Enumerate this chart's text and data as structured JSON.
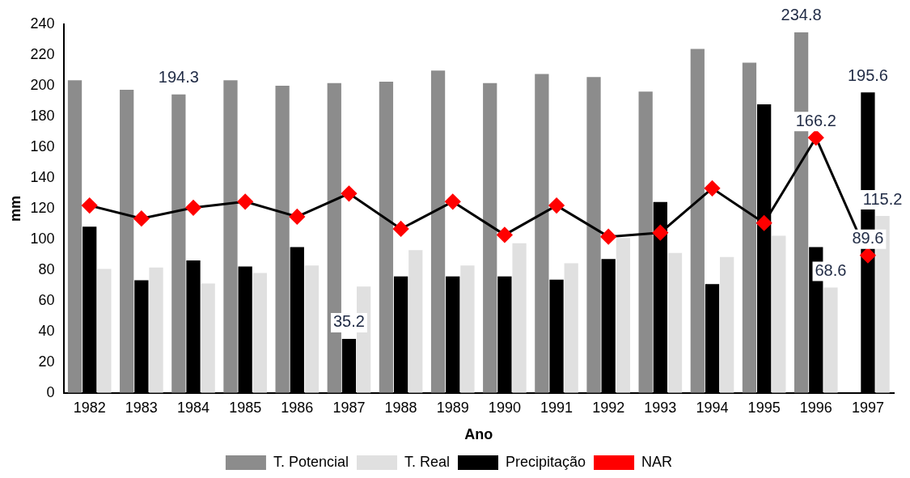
{
  "chart_data": {
    "type": "bar",
    "xlabel": "Ano",
    "ylabel": "mm",
    "categories": [
      "1982",
      "1983",
      "1984",
      "1985",
      "1986",
      "1987",
      "1988",
      "1989",
      "1990",
      "1991",
      "1992",
      "1993",
      "1994",
      "1995",
      "1996",
      "1997"
    ],
    "series": [
      {
        "name": "T. Potencial",
        "color": "#8c8c8c",
        "values": [
          203.6,
          197.3,
          194.3,
          203.6,
          200,
          201.7,
          202.6,
          209.9,
          201.7,
          207.6,
          205.6,
          196.2,
          223.9,
          215,
          234.8,
          null
        ],
        "value_labels": [
          null,
          null,
          "194.3",
          null,
          null,
          null,
          null,
          null,
          null,
          null,
          null,
          null,
          null,
          null,
          "234.8",
          null
        ]
      },
      {
        "name": "T. Real",
        "color": "#e0e0e0",
        "values": [
          80.7,
          81.7,
          71.2,
          78.1,
          83,
          69.3,
          93,
          83,
          97.4,
          84.4,
          100.9,
          91.1,
          88.5,
          102.3,
          68.6,
          115.2
        ],
        "value_labels": [
          null,
          null,
          null,
          null,
          null,
          null,
          null,
          null,
          null,
          null,
          null,
          null,
          null,
          null,
          "68.6",
          "115.2"
        ]
      },
      {
        "name": "Precipitação",
        "color": "#000000",
        "values": [
          108.2,
          73.4,
          86.2,
          82.3,
          95,
          35.2,
          75.8,
          75.8,
          75.8,
          73.8,
          87.2,
          124.3,
          70.8,
          187.9,
          95,
          195.6
        ],
        "value_labels": [
          null,
          null,
          null,
          null,
          null,
          "35.2",
          null,
          null,
          null,
          null,
          null,
          null,
          null,
          null,
          null,
          "195.6"
        ]
      },
      {
        "name": "NAR",
        "type": "line",
        "color": "#ff0000",
        "values": [
          122,
          113.5,
          120.6,
          124.5,
          114.7,
          129.8,
          106.8,
          124.5,
          102.9,
          122,
          101.7,
          104.3,
          133.2,
          110.6,
          166.2,
          89.6
        ],
        "value_labels": [
          null,
          null,
          null,
          null,
          null,
          null,
          null,
          null,
          null,
          null,
          null,
          null,
          null,
          null,
          "166.2",
          "89.6"
        ]
      }
    ],
    "ylim": [
      0,
      240
    ],
    "yticks": [
      0,
      20,
      40,
      60,
      80,
      100,
      120,
      140,
      160,
      180,
      200,
      220,
      240
    ],
    "grid": false,
    "legend": "bottom",
    "marker": "diamond"
  }
}
